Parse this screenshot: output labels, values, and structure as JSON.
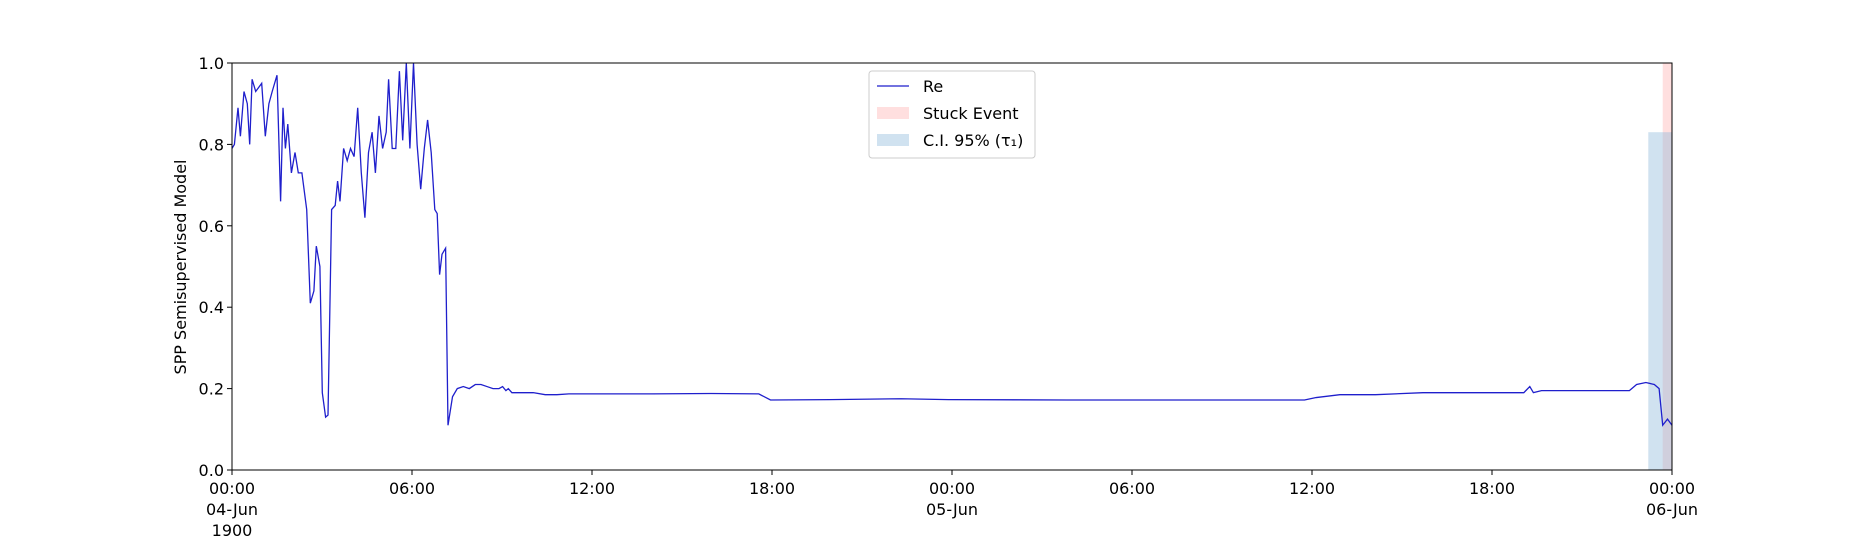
{
  "chart_data": {
    "type": "line",
    "ylabel": "SPP Semisupervised Model",
    "x": [
      0,
      0.08,
      0.2,
      0.28,
      0.4,
      0.51,
      0.59,
      0.67,
      0.79,
      0.99,
      1.11,
      1.23,
      1.34,
      1.5,
      1.62,
      1.7,
      1.78,
      1.86,
      1.98,
      2.1,
      2.21,
      2.33,
      2.49,
      2.61,
      2.73,
      2.81,
      2.93,
      3.01,
      3.12,
      3.2,
      3.32,
      3.44,
      3.52,
      3.6,
      3.72,
      3.84,
      3.95,
      4.07,
      4.19,
      4.31,
      4.43,
      4.55,
      4.67,
      4.78,
      4.9,
      5.02,
      5.14,
      5.22,
      5.34,
      5.46,
      5.58,
      5.69,
      5.81,
      5.93,
      6.05,
      6.17,
      6.29,
      6.41,
      6.52,
      6.64,
      6.76,
      6.84,
      6.92,
      7.0,
      7.12,
      7.2,
      7.35,
      7.51,
      7.71,
      7.91,
      8.11,
      8.3,
      8.5,
      8.7,
      8.9,
      9.02,
      9.13,
      9.21,
      9.33,
      9.65,
      10.04,
      10.44,
      10.83,
      11.23,
      12.02,
      14.0,
      15.97,
      17.56,
      17.95,
      19.93,
      22.3,
      23.88,
      27.84,
      31.79,
      35.75,
      36.14,
      36.93,
      38.12,
      39.7,
      41.68,
      43.06,
      43.26,
      43.38,
      43.65,
      45.24,
      46.58,
      46.82,
      47.13,
      47.41,
      47.57,
      47.69,
      47.85,
      48
    ],
    "series": [
      {
        "name": "Re",
        "color": "#1f1fcc",
        "values": [
          0.79,
          0.8,
          0.89,
          0.82,
          0.93,
          0.9,
          0.8,
          0.96,
          0.93,
          0.95,
          0.82,
          0.9,
          0.93,
          0.97,
          0.66,
          0.89,
          0.79,
          0.85,
          0.73,
          0.78,
          0.73,
          0.73,
          0.64,
          0.41,
          0.44,
          0.55,
          0.5,
          0.19,
          0.13,
          0.135,
          0.64,
          0.65,
          0.71,
          0.66,
          0.79,
          0.76,
          0.79,
          0.77,
          0.89,
          0.73,
          0.62,
          0.78,
          0.83,
          0.73,
          0.87,
          0.79,
          0.83,
          0.96,
          0.79,
          0.79,
          0.98,
          0.81,
          1.0,
          0.79,
          1.0,
          0.8,
          0.69,
          0.79,
          0.86,
          0.78,
          0.64,
          0.63,
          0.48,
          0.53,
          0.545,
          0.11,
          0.18,
          0.2,
          0.205,
          0.2,
          0.21,
          0.21,
          0.205,
          0.2,
          0.2,
          0.205,
          0.195,
          0.2,
          0.19,
          0.19,
          0.19,
          0.185,
          0.185,
          0.187,
          0.187,
          0.187,
          0.188,
          0.187,
          0.172,
          0.173,
          0.175,
          0.173,
          0.172,
          0.172,
          0.172,
          0.178,
          0.185,
          0.185,
          0.19,
          0.19,
          0.19,
          0.205,
          0.19,
          0.195,
          0.195,
          0.195,
          0.21,
          0.215,
          0.21,
          0.2,
          0.11,
          0.125,
          0.11
        ]
      }
    ],
    "spans": [
      {
        "name": "Stuck Event",
        "color": "#ffb0b0",
        "x0": 47.69,
        "x1": 48
      },
      {
        "name": "C.I. 95% (τ₁)",
        "color": "#8ab6d9",
        "x0": 47.21,
        "x1": 48,
        "y0": 0,
        "y1": 0.83
      }
    ],
    "xlim": [
      0,
      48
    ],
    "xticks": [
      {
        "value": 0,
        "label": "00:00\n04-Jun\n1900"
      },
      {
        "value": 6,
        "label": "06:00"
      },
      {
        "value": 12,
        "label": "12:00"
      },
      {
        "value": 18,
        "label": "18:00"
      },
      {
        "value": 24,
        "label": "00:00\n05-Jun"
      },
      {
        "value": 30,
        "label": "06:00"
      },
      {
        "value": 36,
        "label": "12:00"
      },
      {
        "value": 42,
        "label": "18:00"
      },
      {
        "value": 48,
        "label": "00:00\n06-Jun"
      }
    ],
    "ylim": [
      0,
      1
    ],
    "yticks": [
      {
        "value": 0,
        "label": "0.0"
      },
      0.2,
      0.4,
      0.6,
      0.8,
      {
        "value": 1,
        "label": "1.0"
      }
    ],
    "legend": "upper center"
  }
}
